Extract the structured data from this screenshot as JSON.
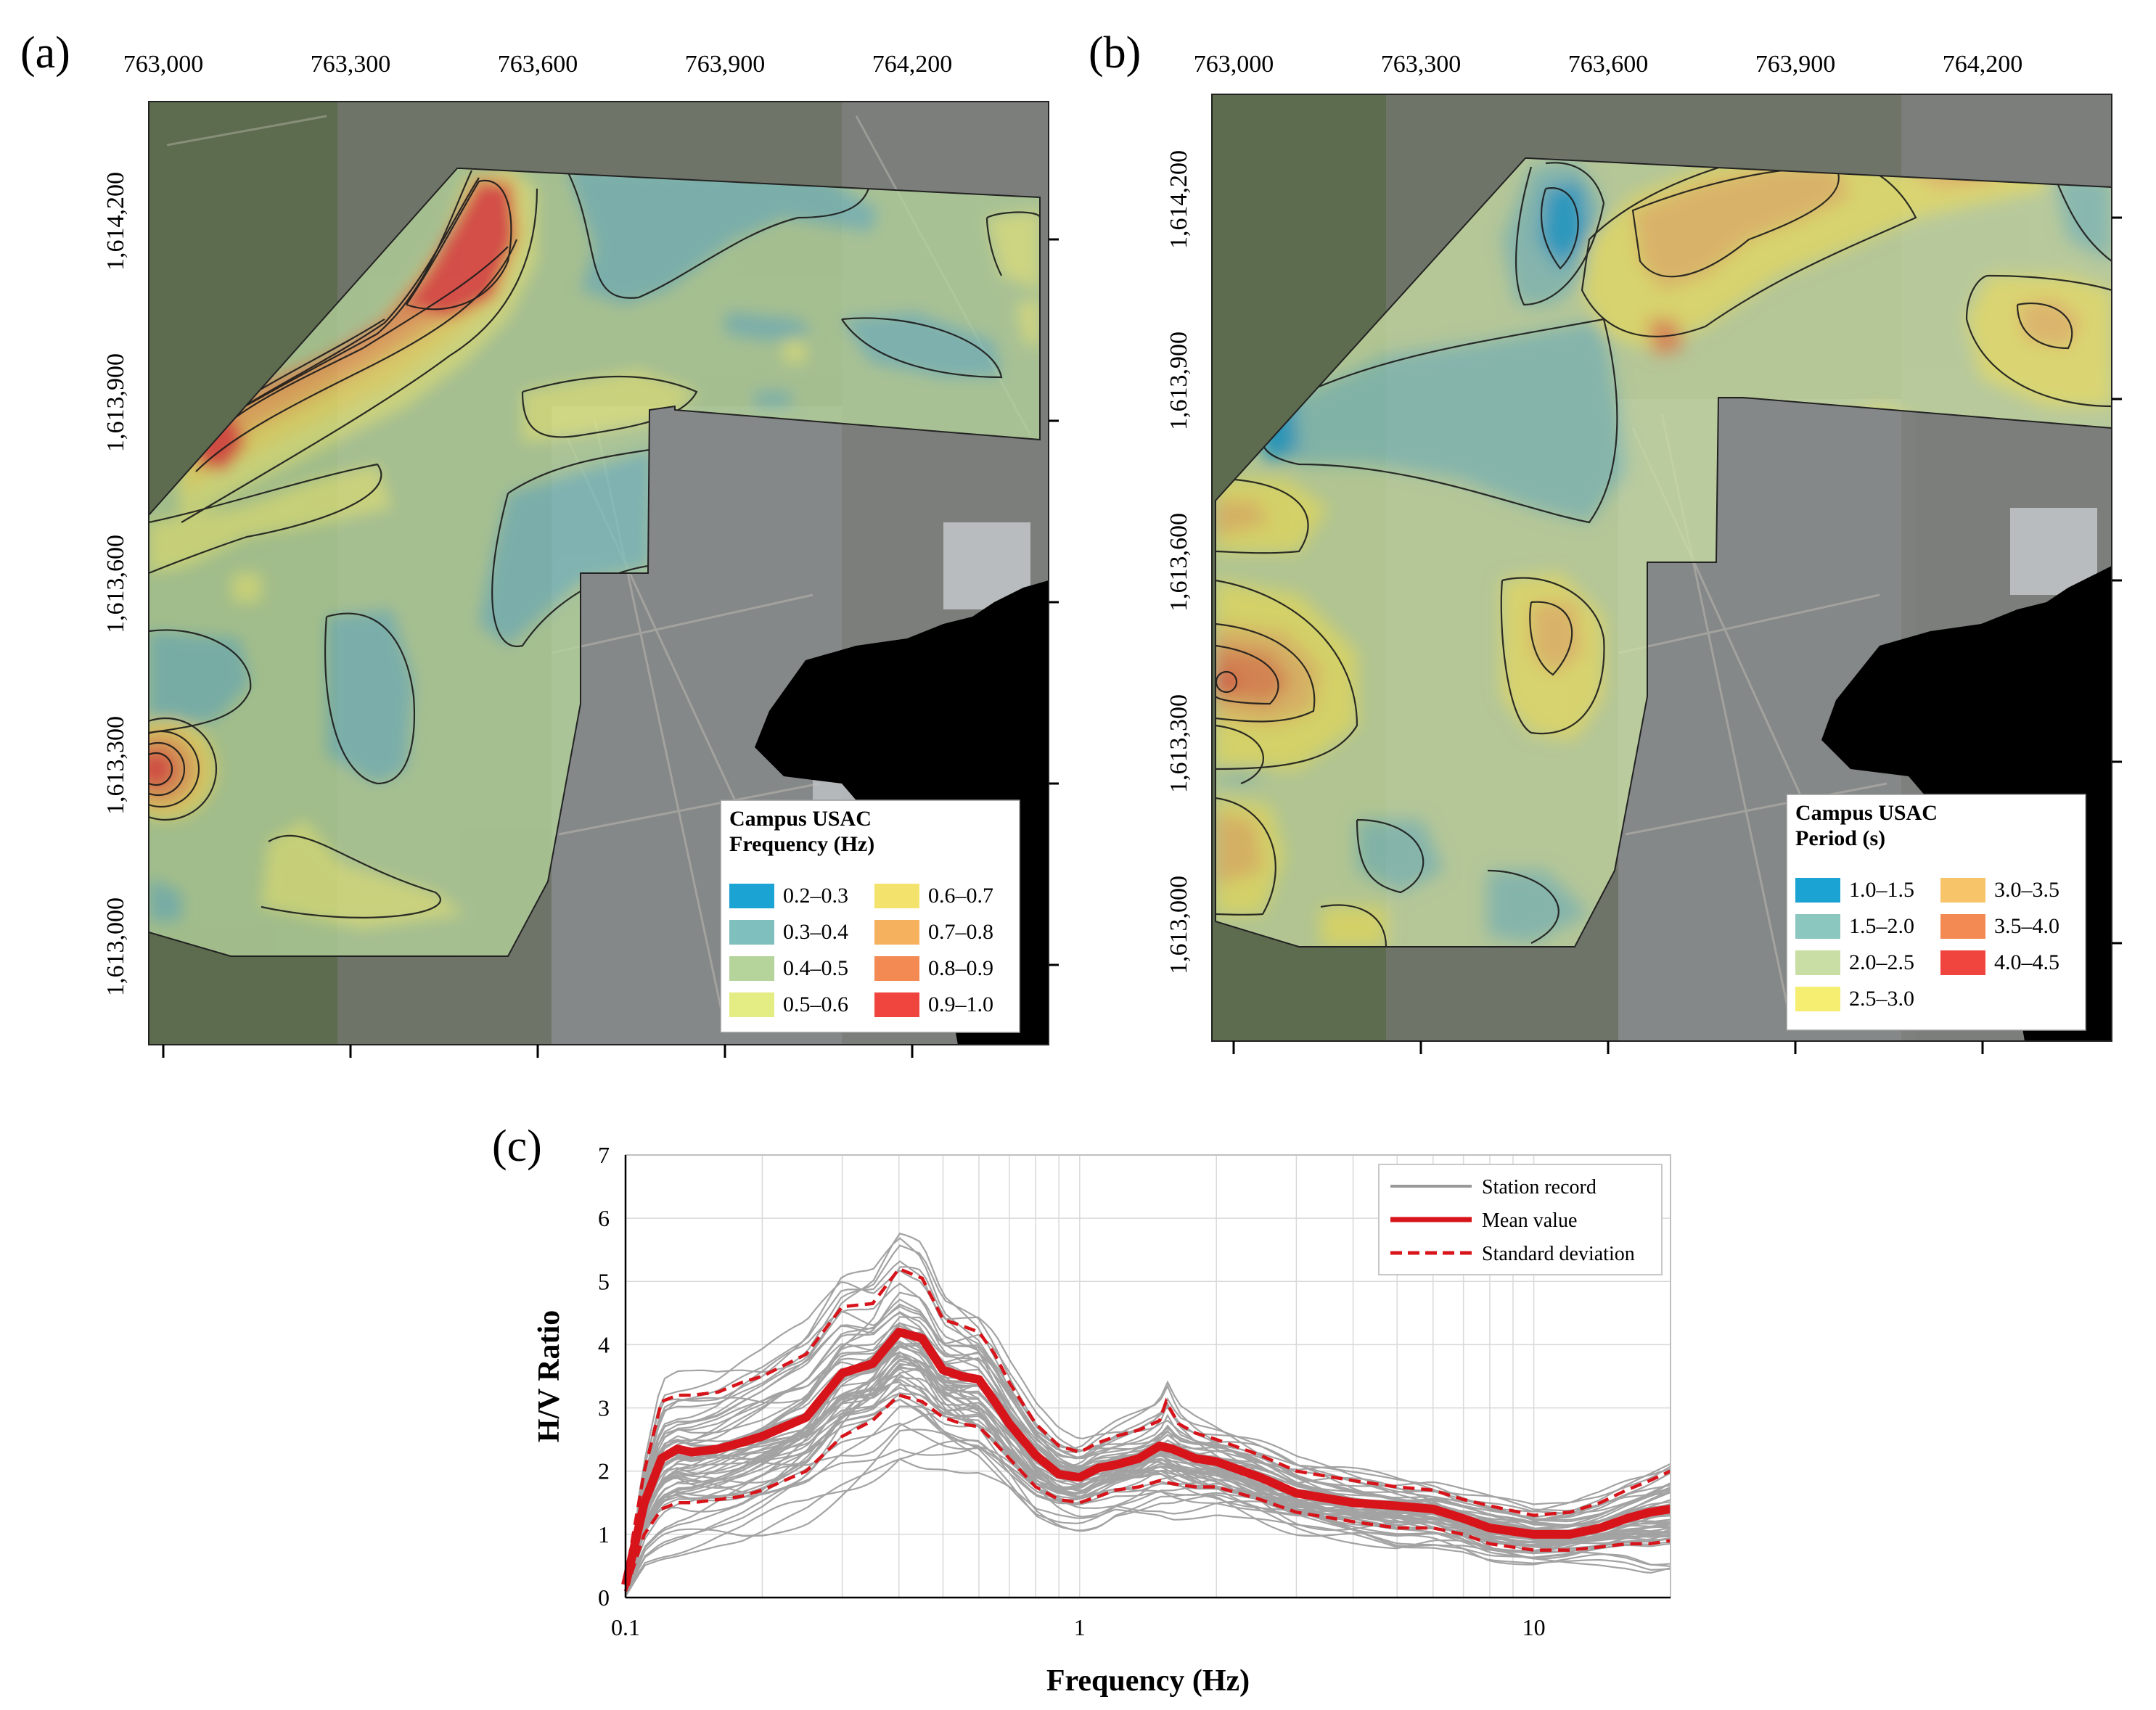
{
  "panels": {
    "a": {
      "label": "(a)",
      "x_ticks": [
        "763,000",
        "763,300",
        "763,600",
        "763,900",
        "764,200"
      ],
      "y_ticks": [
        "1,614,200",
        "1,613,900",
        "1,613,600",
        "1,613,300",
        "1,613,000"
      ],
      "legend": {
        "title": "Campus USAC",
        "subtitle": "Frequency (Hz)",
        "items": [
          {
            "label": "0.2–0.3",
            "color": "#1ba3d4"
          },
          {
            "label": "0.6–0.7",
            "color": "#f3e26b"
          },
          {
            "label": "0.3–0.4",
            "color": "#7fbfbd"
          },
          {
            "label": "0.7–0.8",
            "color": "#f6b15f"
          },
          {
            "label": "0.4–0.5",
            "color": "#b5d49c"
          },
          {
            "label": "0.8–0.9",
            "color": "#f38a53"
          },
          {
            "label": "0.5–0.6",
            "color": "#e4ec84"
          },
          {
            "label": "0.9–1.0",
            "color": "#f0453f"
          }
        ]
      }
    },
    "b": {
      "label": "(b)",
      "x_ticks": [
        "763,000",
        "763,300",
        "763,600",
        "763,900",
        "764,200"
      ],
      "y_ticks": [
        "1,614,200",
        "1,613,900",
        "1,613,600",
        "1,613,300",
        "1,613,000"
      ],
      "legend": {
        "title": "Campus USAC",
        "subtitle": "Period (s)",
        "items": [
          {
            "label": "1.0–1.5",
            "color": "#1ba3d4"
          },
          {
            "label": "3.0–3.5",
            "color": "#f7c46a"
          },
          {
            "label": "1.5–2.0",
            "color": "#8cc7bf"
          },
          {
            "label": "3.5–4.0",
            "color": "#f38a53"
          },
          {
            "label": "2.0–2.5",
            "color": "#c9dea5"
          },
          {
            "label": "4.0–4.5",
            "color": "#f0453f"
          },
          {
            "label": "2.5–3.0",
            "color": "#f5ee70"
          }
        ]
      }
    }
  },
  "chart_data": {
    "label": "(c)",
    "type": "line",
    "xlabel": "Frequency (Hz)",
    "ylabel": "H/V Ratio",
    "xscale": "log",
    "xlim": [
      0.1,
      20
    ],
    "ylim": [
      0,
      7
    ],
    "x_tick_labels": [
      "0.1",
      "1",
      "10"
    ],
    "y_tick_labels": [
      "0",
      "1",
      "2",
      "3",
      "4",
      "5",
      "6",
      "7"
    ],
    "legend": {
      "placement": "top-right",
      "items": [
        {
          "label": "Station record",
          "color": "#999999",
          "style": "solid"
        },
        {
          "label": "Mean value",
          "color": "#d8141b",
          "style": "solid-thick"
        },
        {
          "label": "Standard deviation",
          "color": "#d8141b",
          "style": "dashed"
        }
      ]
    },
    "series": [
      {
        "name": "Mean value",
        "x": [
          0.1,
          0.11,
          0.12,
          0.13,
          0.14,
          0.16,
          0.18,
          0.2,
          0.25,
          0.3,
          0.35,
          0.4,
          0.45,
          0.5,
          0.55,
          0.6,
          0.65,
          0.7,
          0.8,
          0.9,
          1.0,
          1.1,
          1.2,
          1.35,
          1.5,
          1.6,
          1.8,
          2.0,
          2.5,
          3.0,
          4.0,
          5.0,
          6.0,
          7.0,
          8.0,
          10.0,
          12.0,
          14.0,
          16.0,
          18.0,
          20.0
        ],
        "values": [
          0.2,
          1.5,
          2.2,
          2.35,
          2.3,
          2.35,
          2.45,
          2.55,
          2.85,
          3.55,
          3.7,
          4.2,
          4.1,
          3.6,
          3.5,
          3.45,
          3.1,
          2.75,
          2.25,
          1.95,
          1.9,
          2.05,
          2.1,
          2.2,
          2.4,
          2.35,
          2.2,
          2.15,
          1.9,
          1.65,
          1.5,
          1.45,
          1.4,
          1.25,
          1.1,
          1.0,
          1.0,
          1.1,
          1.25,
          1.35,
          1.4
        ]
      },
      {
        "name": "Standard deviation (upper)",
        "x": [
          0.1,
          0.11,
          0.12,
          0.13,
          0.14,
          0.16,
          0.18,
          0.2,
          0.25,
          0.3,
          0.35,
          0.4,
          0.45,
          0.5,
          0.55,
          0.6,
          0.65,
          0.7,
          0.8,
          0.9,
          1.0,
          1.1,
          1.2,
          1.35,
          1.5,
          1.55,
          1.65,
          1.8,
          2.0,
          2.5,
          3.0,
          4.0,
          5.0,
          6.0,
          7.0,
          8.0,
          10.0,
          12.0,
          14.0,
          16.0,
          18.0,
          20.0
        ],
        "values": [
          0.3,
          2.0,
          3.1,
          3.2,
          3.2,
          3.25,
          3.4,
          3.5,
          3.85,
          4.6,
          4.65,
          5.2,
          5.05,
          4.4,
          4.3,
          4.2,
          3.85,
          3.4,
          2.75,
          2.4,
          2.3,
          2.45,
          2.55,
          2.65,
          2.8,
          3.1,
          2.75,
          2.6,
          2.5,
          2.25,
          2.0,
          1.85,
          1.75,
          1.7,
          1.55,
          1.45,
          1.3,
          1.35,
          1.5,
          1.7,
          1.85,
          2.0
        ]
      },
      {
        "name": "Standard deviation (lower)",
        "x": [
          0.1,
          0.11,
          0.12,
          0.13,
          0.14,
          0.16,
          0.18,
          0.2,
          0.25,
          0.3,
          0.35,
          0.4,
          0.45,
          0.5,
          0.55,
          0.6,
          0.65,
          0.7,
          0.8,
          0.9,
          1.0,
          1.1,
          1.2,
          1.35,
          1.5,
          1.6,
          1.8,
          2.0,
          2.5,
          3.0,
          4.0,
          5.0,
          6.0,
          7.0,
          8.0,
          10.0,
          12.0,
          14.0,
          16.0,
          18.0,
          20.0
        ],
        "values": [
          0.1,
          1.0,
          1.4,
          1.5,
          1.5,
          1.55,
          1.6,
          1.7,
          2.0,
          2.55,
          2.8,
          3.2,
          3.1,
          2.85,
          2.75,
          2.7,
          2.45,
          2.2,
          1.75,
          1.55,
          1.5,
          1.6,
          1.7,
          1.75,
          1.85,
          1.8,
          1.75,
          1.75,
          1.55,
          1.35,
          1.2,
          1.1,
          1.1,
          1.0,
          0.85,
          0.75,
          0.75,
          0.8,
          0.85,
          0.85,
          0.9
        ]
      }
    ]
  }
}
